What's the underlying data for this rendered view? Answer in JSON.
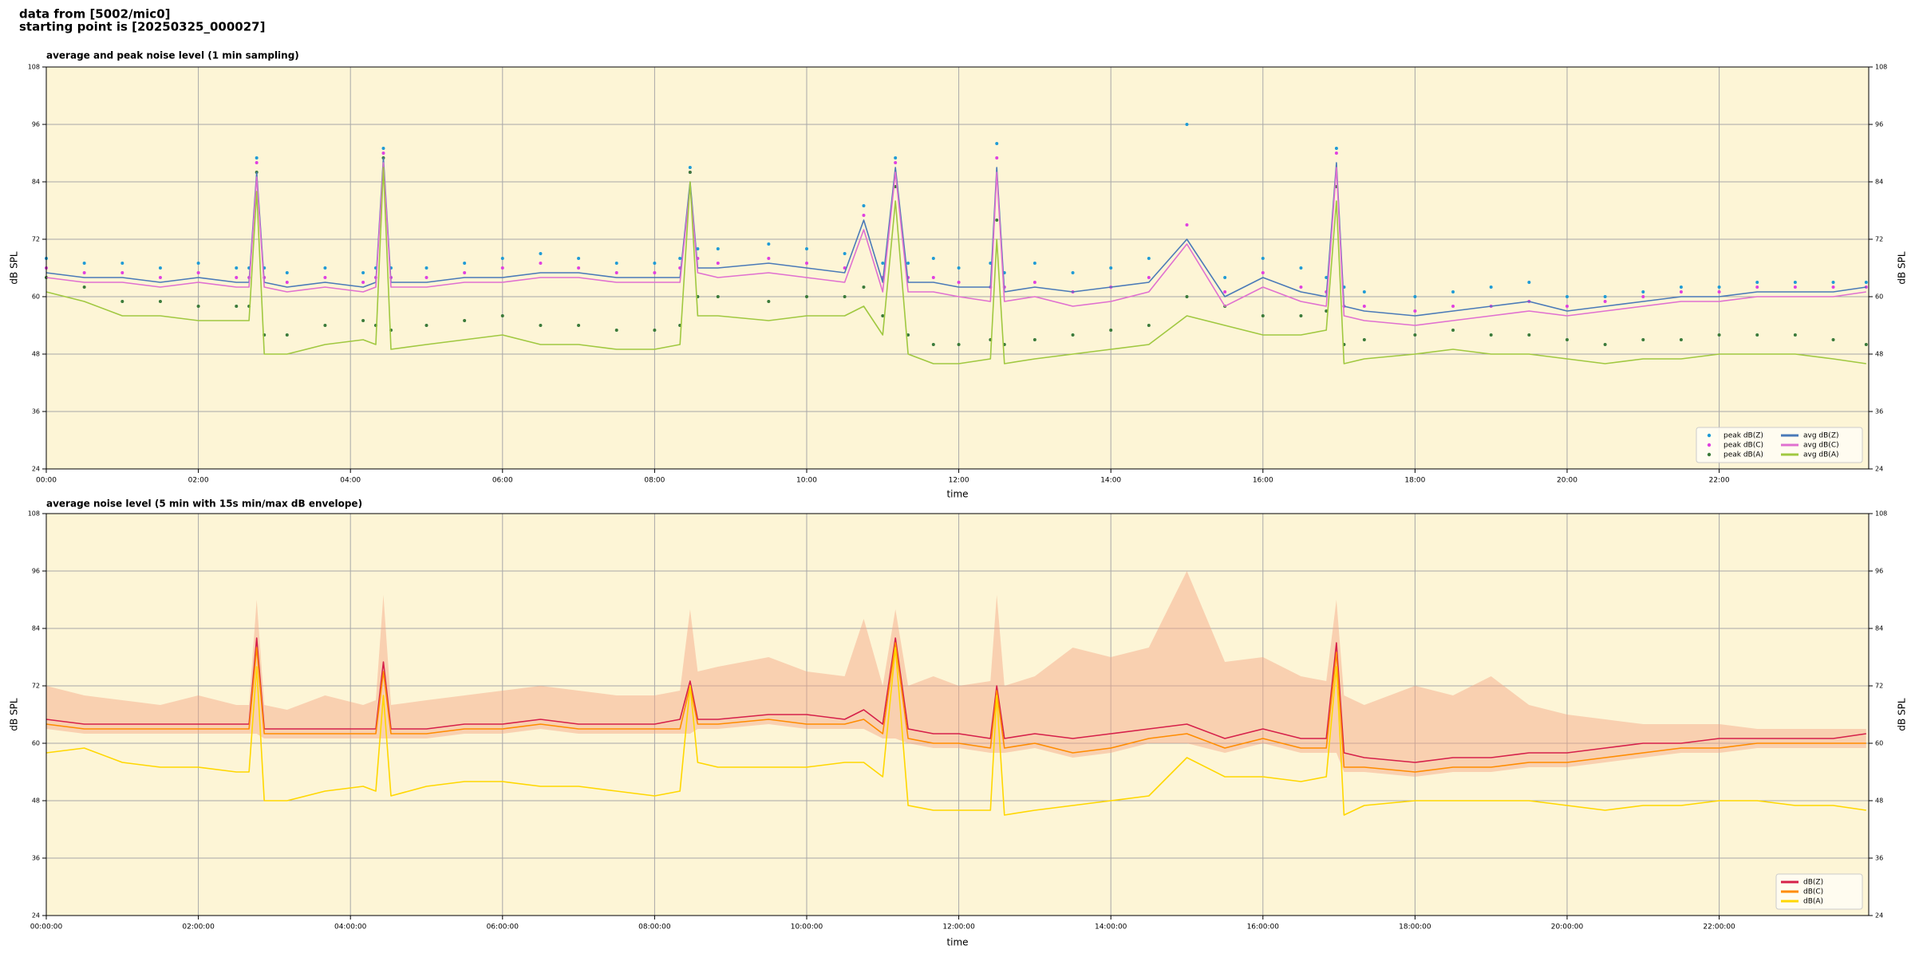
{
  "header": {
    "line1": "data from [5002/mic0]",
    "line2": "starting point is [20250325_000027]"
  },
  "chart_data": [
    {
      "type": "line",
      "title": "average and peak noise level (1 min sampling)",
      "xlabel": "time",
      "ylabel": "dB SPL",
      "y2label": "dB SPL",
      "background": "#fdf5d6",
      "grid": true,
      "legend": "lower right",
      "legend_ncol": 2,
      "xlim": [
        0,
        1438
      ],
      "ylim": [
        24,
        108
      ],
      "y2lim": [
        24,
        108
      ],
      "xticks": [
        {
          "value": 0,
          "label": "00:00"
        },
        {
          "value": 120,
          "label": "02:00"
        },
        {
          "value": 240,
          "label": "04:00"
        },
        {
          "value": 360,
          "label": "06:00"
        },
        {
          "value": 480,
          "label": "08:00"
        },
        {
          "value": 600,
          "label": "10:00"
        },
        {
          "value": 720,
          "label": "12:00"
        },
        {
          "value": 840,
          "label": "14:00"
        },
        {
          "value": 960,
          "label": "16:00"
        },
        {
          "value": 1080,
          "label": "18:00"
        },
        {
          "value": 1200,
          "label": "20:00"
        },
        {
          "value": 1320,
          "label": "22:00"
        }
      ],
      "yticks": [
        24,
        36,
        48,
        60,
        72,
        84,
        96,
        108
      ],
      "y2ticks": [
        24,
        36,
        48,
        60,
        72,
        84,
        96,
        108
      ],
      "x": [
        0,
        30,
        60,
        90,
        120,
        150,
        160,
        166,
        172,
        190,
        220,
        250,
        260,
        266,
        272,
        300,
        330,
        360,
        390,
        420,
        450,
        480,
        500,
        508,
        514,
        530,
        570,
        600,
        630,
        645,
        660,
        670,
        680,
        700,
        720,
        745,
        750,
        756,
        780,
        810,
        840,
        870,
        900,
        930,
        960,
        990,
        1010,
        1018,
        1024,
        1040,
        1080,
        1110,
        1140,
        1170,
        1200,
        1230,
        1260,
        1290,
        1320,
        1350,
        1380,
        1410,
        1436
      ],
      "series": [
        {
          "name": "peak dB(Z)",
          "type": "scatter",
          "color": "#1f9bd6",
          "values": [
            68,
            67,
            67,
            66,
            67,
            66,
            66,
            89,
            66,
            65,
            66,
            65,
            66,
            91,
            66,
            66,
            67,
            68,
            69,
            68,
            67,
            67,
            68,
            87,
            70,
            70,
            71,
            70,
            69,
            79,
            67,
            89,
            67,
            68,
            66,
            67,
            92,
            65,
            67,
            65,
            66,
            68,
            96,
            64,
            68,
            66,
            64,
            91,
            62,
            61,
            60,
            61,
            62,
            63,
            60,
            60,
            61,
            62,
            62,
            63,
            63,
            63,
            63
          ]
        },
        {
          "name": "peak dB(C)",
          "type": "scatter",
          "color": "#e040e0",
          "values": [
            66,
            65,
            65,
            64,
            65,
            64,
            64,
            88,
            64,
            63,
            64,
            63,
            64,
            90,
            64,
            64,
            65,
            66,
            67,
            66,
            65,
            65,
            66,
            86,
            68,
            67,
            68,
            67,
            66,
            77,
            64,
            88,
            64,
            64,
            63,
            62,
            89,
            62,
            63,
            61,
            62,
            64,
            75,
            61,
            65,
            62,
            61,
            90,
            58,
            58,
            57,
            58,
            58,
            59,
            58,
            59,
            60,
            61,
            61,
            62,
            62,
            62,
            62
          ]
        },
        {
          "name": "peak dB(A)",
          "type": "scatter",
          "color": "#3a7a3a",
          "values": [
            64,
            62,
            59,
            59,
            58,
            58,
            58,
            86,
            52,
            52,
            54,
            55,
            54,
            89,
            53,
            54,
            55,
            56,
            54,
            54,
            53,
            53,
            54,
            86,
            60,
            60,
            59,
            60,
            60,
            62,
            56,
            83,
            52,
            50,
            50,
            51,
            76,
            50,
            51,
            52,
            53,
            54,
            60,
            58,
            56,
            56,
            57,
            83,
            50,
            51,
            52,
            53,
            52,
            52,
            51,
            50,
            51,
            51,
            52,
            52,
            52,
            51,
            50
          ]
        },
        {
          "name": "avg dB(Z)",
          "type": "line",
          "color": "#4a7ab8",
          "values": [
            65,
            64,
            64,
            63,
            64,
            63,
            63,
            86,
            63,
            62,
            63,
            62,
            63,
            89,
            63,
            63,
            64,
            64,
            65,
            65,
            64,
            64,
            64,
            84,
            66,
            66,
            67,
            66,
            65,
            76,
            63,
            87,
            63,
            63,
            62,
            62,
            87,
            61,
            62,
            61,
            62,
            63,
            72,
            60,
            64,
            61,
            60,
            88,
            58,
            57,
            56,
            57,
            58,
            59,
            57,
            58,
            59,
            60,
            60,
            61,
            61,
            61,
            62
          ]
        },
        {
          "name": "avg dB(C)",
          "type": "line",
          "color": "#e070d0",
          "values": [
            64,
            63,
            63,
            62,
            63,
            62,
            62,
            85,
            62,
            61,
            62,
            61,
            62,
            88,
            62,
            62,
            63,
            63,
            64,
            64,
            63,
            63,
            63,
            83,
            65,
            64,
            65,
            64,
            63,
            74,
            61,
            86,
            61,
            61,
            60,
            59,
            86,
            59,
            60,
            58,
            59,
            61,
            71,
            58,
            62,
            59,
            58,
            87,
            56,
            55,
            54,
            55,
            56,
            57,
            56,
            57,
            58,
            59,
            59,
            60,
            60,
            60,
            61
          ]
        },
        {
          "name": "avg dB(A)",
          "type": "line",
          "color": "#a0c840",
          "values": [
            61,
            59,
            56,
            56,
            55,
            55,
            55,
            82,
            48,
            48,
            50,
            51,
            50,
            87,
            49,
            50,
            51,
            52,
            50,
            50,
            49,
            49,
            50,
            84,
            56,
            56,
            55,
            56,
            56,
            58,
            52,
            80,
            48,
            46,
            46,
            47,
            72,
            46,
            47,
            48,
            49,
            50,
            56,
            54,
            52,
            52,
            53,
            80,
            46,
            47,
            48,
            49,
            48,
            48,
            47,
            46,
            47,
            47,
            48,
            48,
            48,
            47,
            46
          ]
        }
      ]
    },
    {
      "type": "line",
      "title": "average noise level (5 min with 15s min/max dB envelope)",
      "xlabel": "time",
      "ylabel": "dB SPL",
      "y2label": "dB SPL",
      "background": "#fdf5d6",
      "grid": true,
      "legend": "lower right",
      "legend_ncol": 1,
      "xlim": [
        0,
        1438
      ],
      "ylim": [
        24,
        108
      ],
      "y2lim": [
        24,
        108
      ],
      "xticks": [
        {
          "value": 0,
          "label": "00:00:00"
        },
        {
          "value": 120,
          "label": "02:00:00"
        },
        {
          "value": 240,
          "label": "04:00:00"
        },
        {
          "value": 360,
          "label": "06:00:00"
        },
        {
          "value": 480,
          "label": "08:00:00"
        },
        {
          "value": 600,
          "label": "10:00:00"
        },
        {
          "value": 720,
          "label": "12:00:00"
        },
        {
          "value": 840,
          "label": "14:00:00"
        },
        {
          "value": 960,
          "label": "16:00:00"
        },
        {
          "value": 1080,
          "label": "18:00:00"
        },
        {
          "value": 1200,
          "label": "20:00:00"
        },
        {
          "value": 1320,
          "label": "22:00:00"
        }
      ],
      "yticks": [
        24,
        36,
        48,
        60,
        72,
        84,
        96,
        108
      ],
      "y2ticks": [
        24,
        36,
        48,
        60,
        72,
        84,
        96,
        108
      ],
      "x": [
        0,
        30,
        60,
        90,
        120,
        150,
        160,
        166,
        172,
        190,
        220,
        250,
        260,
        266,
        272,
        300,
        330,
        360,
        390,
        420,
        450,
        480,
        500,
        508,
        514,
        530,
        570,
        600,
        630,
        645,
        660,
        670,
        680,
        700,
        720,
        745,
        750,
        756,
        780,
        810,
        840,
        870,
        900,
        930,
        960,
        990,
        1010,
        1018,
        1024,
        1040,
        1080,
        1110,
        1140,
        1170,
        1200,
        1230,
        1260,
        1290,
        1320,
        1350,
        1380,
        1410,
        1436
      ],
      "envelope": {
        "color": "#f4a582",
        "upper": [
          72,
          70,
          69,
          68,
          70,
          68,
          68,
          90,
          68,
          67,
          70,
          68,
          69,
          91,
          68,
          69,
          70,
          71,
          72,
          71,
          70,
          70,
          71,
          88,
          75,
          76,
          78,
          75,
          74,
          86,
          72,
          88,
          72,
          74,
          72,
          73,
          91,
          72,
          74,
          80,
          78,
          80,
          96,
          77,
          78,
          74,
          73,
          90,
          70,
          68,
          72,
          70,
          74,
          68,
          66,
          65,
          64,
          64,
          64,
          63,
          63,
          63,
          63
        ],
        "lower": [
          63,
          62,
          62,
          62,
          62,
          62,
          62,
          62,
          61,
          61,
          61,
          61,
          61,
          61,
          61,
          61,
          62,
          62,
          63,
          62,
          62,
          62,
          62,
          62,
          63,
          63,
          64,
          63,
          63,
          63,
          61,
          61,
          60,
          59,
          59,
          58,
          58,
          58,
          59,
          57,
          58,
          60,
          60,
          58,
          60,
          58,
          58,
          58,
          54,
          54,
          53,
          54,
          54,
          55,
          55,
          56,
          57,
          58,
          58,
          59,
          59,
          59,
          59
        ]
      },
      "series": [
        {
          "name": "dB(Z)",
          "type": "line",
          "color": "#d6204a",
          "values": [
            65,
            64,
            64,
            64,
            64,
            64,
            64,
            82,
            63,
            63,
            63,
            63,
            63,
            77,
            63,
            63,
            64,
            64,
            65,
            64,
            64,
            64,
            65,
            73,
            65,
            65,
            66,
            66,
            65,
            67,
            64,
            82,
            63,
            62,
            62,
            61,
            72,
            61,
            62,
            61,
            62,
            63,
            64,
            61,
            63,
            61,
            61,
            81,
            58,
            57,
            56,
            57,
            57,
            58,
            58,
            59,
            60,
            60,
            61,
            61,
            61,
            61,
            62
          ]
        },
        {
          "name": "dB(C)",
          "type": "line",
          "color": "#ff8c00",
          "values": [
            64,
            63,
            63,
            63,
            63,
            63,
            63,
            80,
            62,
            62,
            62,
            62,
            62,
            75,
            62,
            62,
            63,
            63,
            64,
            63,
            63,
            63,
            63,
            72,
            64,
            64,
            65,
            64,
            64,
            65,
            62,
            81,
            61,
            60,
            60,
            59,
            71,
            59,
            60,
            58,
            59,
            61,
            62,
            59,
            61,
            59,
            59,
            79,
            55,
            55,
            54,
            55,
            55,
            56,
            56,
            57,
            58,
            59,
            59,
            60,
            60,
            60,
            60
          ]
        },
        {
          "name": "dB(A)",
          "type": "line",
          "color": "#ffd700",
          "values": [
            58,
            59,
            56,
            55,
            55,
            54,
            54,
            76,
            48,
            48,
            50,
            51,
            50,
            70,
            49,
            51,
            52,
            52,
            51,
            51,
            50,
            49,
            50,
            72,
            56,
            55,
            55,
            55,
            56,
            56,
            53,
            80,
            47,
            46,
            46,
            46,
            70,
            45,
            46,
            47,
            48,
            49,
            57,
            53,
            53,
            52,
            53,
            76,
            45,
            47,
            48,
            48,
            48,
            48,
            47,
            46,
            47,
            47,
            48,
            48,
            47,
            47,
            46
          ]
        }
      ]
    }
  ]
}
